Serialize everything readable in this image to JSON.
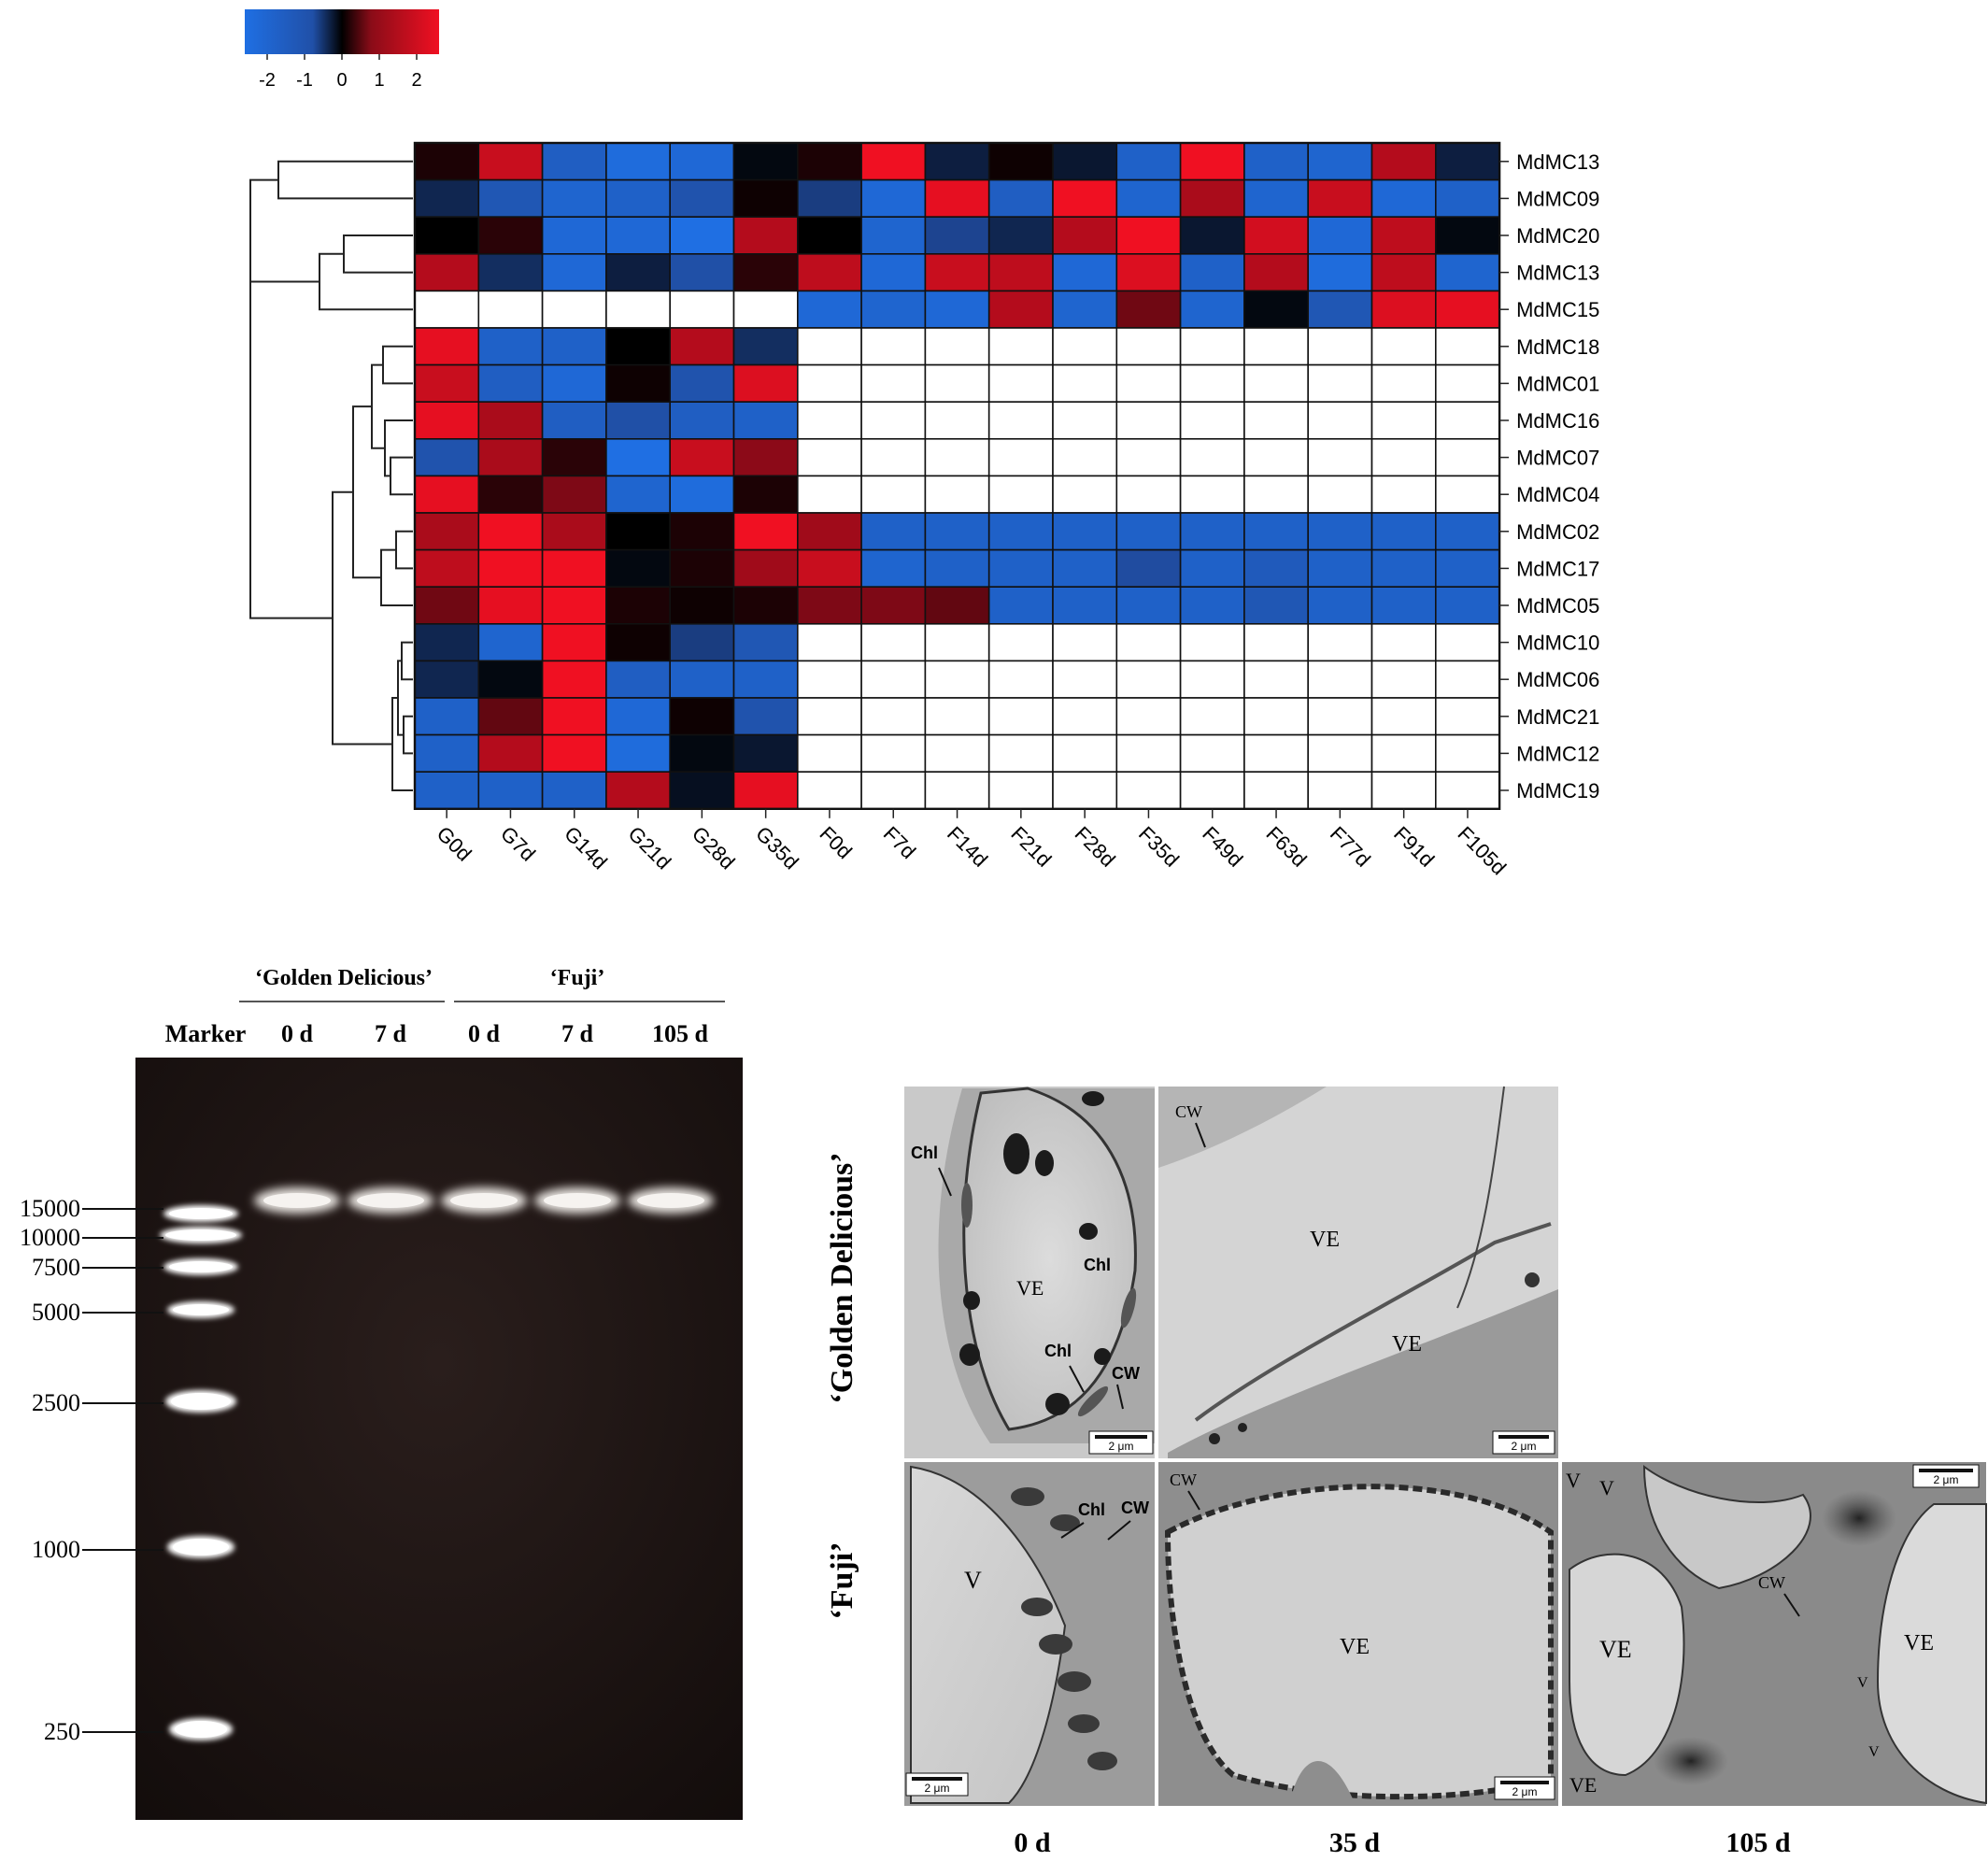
{
  "colors": {
    "low": "#1f6fe3",
    "mid": "#000000",
    "high": "#f01022",
    "missing": "#ffffff"
  },
  "color_key": {
    "ticks": [
      "-2",
      "-1",
      "0",
      "1",
      "2"
    ]
  },
  "chart_data": {
    "type": "heatmap",
    "rows": [
      "MdMC13",
      "MdMC09",
      "MdMC20",
      "MdMC13",
      "MdMC15",
      "MdMC18",
      "MdMC01",
      "MdMC16",
      "MdMC07",
      "MdMC04",
      "MdMC02",
      "MdMC17",
      "MdMC05",
      "MdMC10",
      "MdMC06",
      "MdMC21",
      "MdMC12",
      "MdMC19"
    ],
    "columns": [
      "G0d",
      "G7d",
      "G14d",
      "G21d",
      "G28d",
      "G35d",
      "F0d",
      "F7d",
      "F14d",
      "F21d",
      "F28d",
      "F35d",
      "F49d",
      "F63d",
      "F77d",
      "F91d",
      "F105d"
    ],
    "value_range": [
      -2,
      2
    ],
    "values": [
      [
        0.2,
        1.6,
        -1.5,
        -1.9,
        -1.8,
        -0.1,
        0.2,
        2.0,
        -0.4,
        0.1,
        -0.3,
        -1.6,
        2.0,
        -1.6,
        -1.7,
        1.4,
        -0.4
      ],
      [
        -0.5,
        -1.3,
        -1.7,
        -1.6,
        -1.2,
        0.1,
        -0.8,
        -1.8,
        1.9,
        -1.5,
        2.0,
        -1.7,
        1.3,
        -1.7,
        1.6,
        -1.8,
        -1.6
      ],
      [
        0.0,
        0.3,
        -1.8,
        -1.8,
        -2.0,
        1.4,
        0.0,
        -1.7,
        -0.9,
        -0.5,
        1.4,
        2.0,
        -0.3,
        1.7,
        -1.8,
        1.5,
        -0.1
      ],
      [
        1.4,
        -0.6,
        -1.8,
        -0.4,
        -1.1,
        0.3,
        1.5,
        -1.8,
        1.6,
        1.5,
        -1.8,
        1.8,
        -1.6,
        1.4,
        -1.9,
        1.5,
        -1.7
      ],
      [
        null,
        null,
        null,
        null,
        null,
        null,
        -1.8,
        -1.7,
        -1.8,
        1.4,
        -1.7,
        0.8,
        -1.7,
        -0.1,
        -1.3,
        1.8,
        1.9
      ],
      [
        1.9,
        -1.6,
        -1.6,
        0.0,
        1.4,
        -0.6,
        null,
        null,
        null,
        null,
        null,
        null,
        null,
        null,
        null,
        null,
        null
      ],
      [
        1.6,
        -1.5,
        -1.8,
        0.1,
        -1.2,
        1.8,
        null,
        null,
        null,
        null,
        null,
        null,
        null,
        null,
        null,
        null,
        null
      ],
      [
        1.9,
        1.3,
        -1.5,
        -1.1,
        -1.5,
        -1.6,
        null,
        null,
        null,
        null,
        null,
        null,
        null,
        null,
        null,
        null,
        null
      ],
      [
        -1.2,
        1.3,
        0.3,
        -2.0,
        1.6,
        1.0,
        null,
        null,
        null,
        null,
        null,
        null,
        null,
        null,
        null,
        null,
        null
      ],
      [
        1.9,
        0.3,
        0.9,
        -1.7,
        -1.9,
        0.2,
        null,
        null,
        null,
        null,
        null,
        null,
        null,
        null,
        null,
        null,
        null
      ],
      [
        1.3,
        2.0,
        1.3,
        0.0,
        0.2,
        2.0,
        1.2,
        -1.6,
        -1.6,
        -1.6,
        -1.6,
        -1.6,
        -1.6,
        -1.6,
        -1.6,
        -1.6,
        -1.6
      ],
      [
        1.5,
        2.0,
        2.0,
        -0.1,
        0.2,
        1.2,
        1.6,
        -1.7,
        -1.6,
        -1.6,
        -1.6,
        -1.0,
        -1.6,
        -1.4,
        -1.6,
        -1.6,
        -1.6
      ],
      [
        0.8,
        1.9,
        2.0,
        0.2,
        0.1,
        0.2,
        0.9,
        0.9,
        0.7,
        -1.6,
        -1.6,
        -1.6,
        -1.6,
        -1.3,
        -1.6,
        -1.6,
        -1.6
      ],
      [
        -0.5,
        -1.7,
        2.0,
        0.1,
        -0.8,
        -1.3,
        null,
        null,
        null,
        null,
        null,
        null,
        null,
        null,
        null,
        null,
        null
      ],
      [
        -0.5,
        -0.1,
        2.0,
        -1.5,
        -1.6,
        -1.6,
        null,
        null,
        null,
        null,
        null,
        null,
        null,
        null,
        null,
        null,
        null
      ],
      [
        -1.6,
        0.7,
        2.0,
        -1.8,
        0.1,
        -1.2,
        null,
        null,
        null,
        null,
        null,
        null,
        null,
        null,
        null,
        null,
        null
      ],
      [
        -1.6,
        1.4,
        2.0,
        -1.9,
        -0.1,
        -0.3,
        null,
        null,
        null,
        null,
        null,
        null,
        null,
        null,
        null,
        null,
        null
      ],
      [
        -1.6,
        -1.6,
        -1.6,
        1.4,
        -0.2,
        1.9,
        null,
        null,
        null,
        null,
        null,
        null,
        null,
        null,
        null,
        null,
        null
      ]
    ]
  },
  "gel": {
    "group_labels": [
      "‘Golden Delicious’",
      "‘Fuji’"
    ],
    "lane_labels": [
      "Marker",
      "0 d",
      "7 d",
      "0 d",
      "7 d",
      "105 d"
    ],
    "marker_sizes": [
      "15000",
      "10000",
      "7500",
      "5000",
      "2500",
      "1000",
      "250"
    ]
  },
  "tem": {
    "row_labels": [
      "‘Golden Delicious’",
      "‘Fuji’"
    ],
    "column_labels": [
      "0 d",
      "35 d",
      "105 d"
    ],
    "scale_text": "2 μm",
    "panels": {
      "gd0": [
        "Chl",
        "VE",
        "Chl",
        "Chl",
        "CW"
      ],
      "gd35": [
        "CW",
        "VE",
        "VE"
      ],
      "fuji0": [
        "V",
        "Chl",
        "CW"
      ],
      "fuji35": [
        "CW",
        "VE"
      ],
      "fuji105": [
        "V",
        "V",
        "CW",
        "VE",
        "VE",
        "VE",
        "V",
        "V"
      ]
    }
  }
}
